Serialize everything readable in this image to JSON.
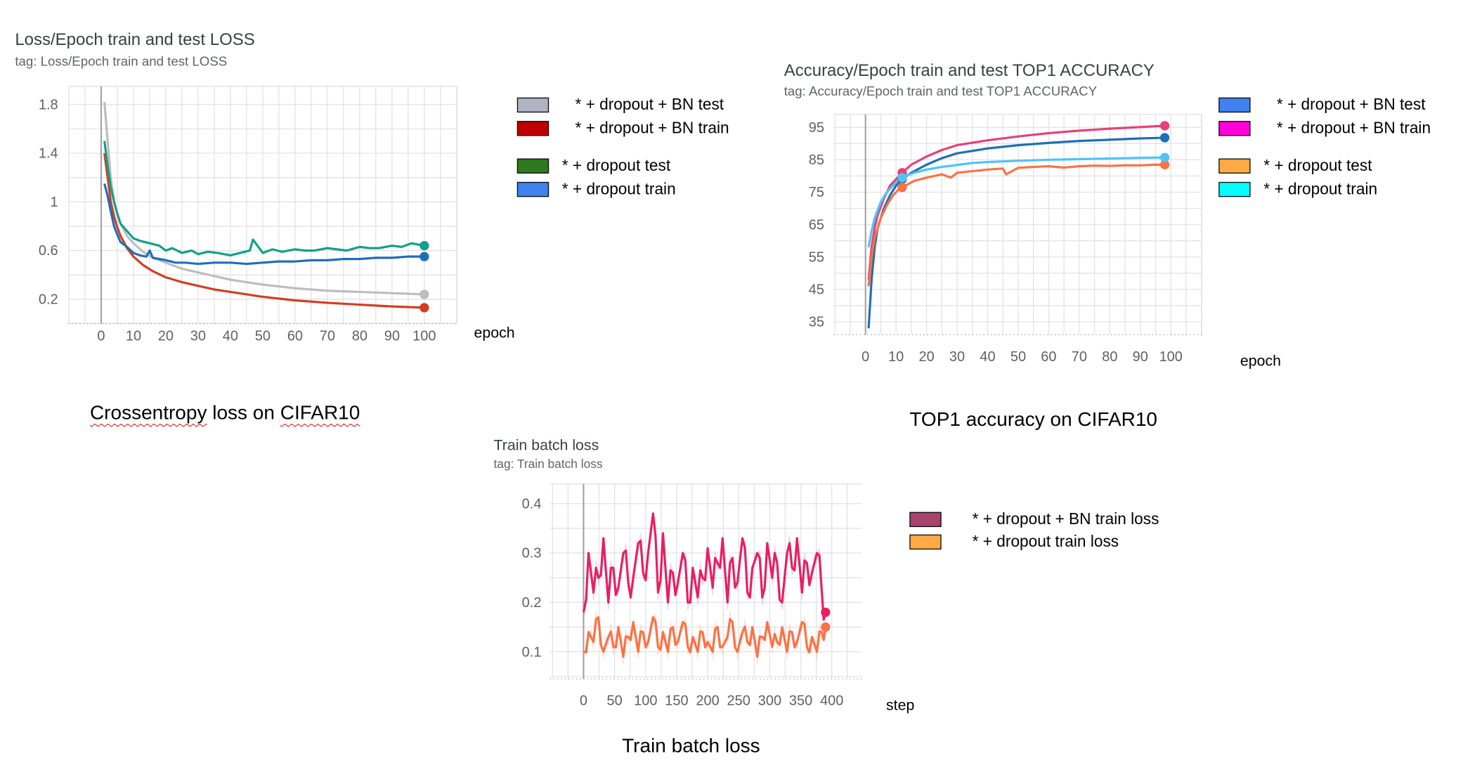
{
  "charts": [
    {
      "title": "Loss/Epoch train and test LOSS",
      "tag": "tag: Loss/Epoch train and test LOSS",
      "xunit": "epoch",
      "caption_parts": [
        "Crossentropy",
        "loss on",
        "CIFAR10"
      ]
    },
    {
      "title": "Accuracy/Epoch train and test TOP1 ACCURACY",
      "tag": "tag: Accuracy/Epoch train and test TOP1 ACCURACY",
      "xunit": "epoch",
      "caption": "TOP1 accuracy on CIFAR10"
    },
    {
      "title": "Train batch loss",
      "tag": "tag: Train batch loss",
      "xunit": "step",
      "caption": "Train batch loss"
    }
  ],
  "legends": [
    [
      {
        "label": "* + dropout + BN test",
        "color": "#aeb4c2"
      },
      {
        "label": "* + dropout + BN train",
        "color": "#c00000"
      },
      {
        "label": "* + dropout test",
        "color": "#2e7a1f"
      },
      {
        "label": "* + dropout train",
        "color": "#3f82f0"
      }
    ],
    [
      {
        "label": "* + dropout + BN test",
        "color": "#3f82f0"
      },
      {
        "label": "* + dropout + BN train",
        "color": "#ff00d8"
      },
      {
        "label": "* + dropout test",
        "color": "#ffaa44"
      },
      {
        "label": "* + dropout train",
        "color": "#00ffff"
      }
    ],
    [
      {
        "label": "* + dropout + BN train loss",
        "color": "#a8436e"
      },
      {
        "label": "* + dropout train loss",
        "color": "#ffaa44"
      }
    ]
  ],
  "chart_data": [
    {
      "type": "line",
      "title": "Loss/Epoch train and test LOSS",
      "xlabel": "epoch",
      "xlim": [
        0,
        100
      ],
      "ylim": [
        0,
        1.95
      ],
      "xticks": [
        0,
        10,
        20,
        30,
        40,
        50,
        60,
        70,
        80,
        90,
        100
      ],
      "yticks": [
        0.2,
        0.6,
        1,
        1.4,
        1.8
      ],
      "ytick_labels": [
        "0.2",
        "0.6",
        "1",
        "1.4",
        "1.8"
      ],
      "series": [
        {
          "name": "* + dropout + BN test",
          "color": "#bdbdbd",
          "x": [
            1,
            2,
            3,
            4,
            5,
            6,
            8,
            10,
            13,
            16,
            20,
            25,
            30,
            35,
            40,
            45,
            50,
            60,
            70,
            80,
            90,
            100
          ],
          "y": [
            1.82,
            1.5,
            1.2,
            1.0,
            0.9,
            0.82,
            0.72,
            0.66,
            0.59,
            0.54,
            0.5,
            0.45,
            0.42,
            0.39,
            0.36,
            0.34,
            0.32,
            0.29,
            0.27,
            0.26,
            0.25,
            0.24
          ]
        },
        {
          "name": "* + dropout + BN train",
          "color": "#d23f1f",
          "x": [
            1,
            2,
            3,
            4,
            5,
            6,
            8,
            10,
            13,
            16,
            20,
            25,
            30,
            35,
            40,
            45,
            50,
            60,
            70,
            80,
            90,
            100
          ],
          "y": [
            1.4,
            1.2,
            1.0,
            0.88,
            0.79,
            0.72,
            0.62,
            0.55,
            0.48,
            0.43,
            0.38,
            0.34,
            0.31,
            0.28,
            0.26,
            0.24,
            0.22,
            0.19,
            0.17,
            0.155,
            0.14,
            0.13
          ]
        },
        {
          "name": "* + dropout test",
          "color": "#12a08a",
          "x": [
            1,
            2,
            3,
            4,
            5,
            6,
            8,
            10,
            12,
            15,
            18,
            20,
            22,
            25,
            28,
            30,
            33,
            36,
            40,
            43,
            46,
            47,
            50,
            53,
            56,
            60,
            63,
            66,
            70,
            73,
            76,
            80,
            83,
            86,
            90,
            93,
            96,
            100
          ],
          "y": [
            1.5,
            1.3,
            1.12,
            1.0,
            0.9,
            0.82,
            0.76,
            0.7,
            0.68,
            0.66,
            0.64,
            0.6,
            0.62,
            0.58,
            0.6,
            0.57,
            0.59,
            0.58,
            0.56,
            0.58,
            0.6,
            0.69,
            0.58,
            0.61,
            0.59,
            0.61,
            0.6,
            0.6,
            0.62,
            0.61,
            0.6,
            0.63,
            0.62,
            0.62,
            0.64,
            0.63,
            0.66,
            0.64
          ]
        },
        {
          "name": "* + dropout train",
          "color": "#1f6fb8",
          "x": [
            1,
            2,
            3,
            4,
            5,
            6,
            8,
            10,
            12,
            14,
            15,
            16,
            18,
            20,
            23,
            26,
            30,
            35,
            40,
            45,
            50,
            55,
            60,
            65,
            70,
            75,
            80,
            85,
            90,
            95,
            100
          ],
          "y": [
            1.15,
            1.05,
            0.92,
            0.8,
            0.73,
            0.67,
            0.63,
            0.58,
            0.56,
            0.55,
            0.6,
            0.54,
            0.53,
            0.52,
            0.5,
            0.5,
            0.49,
            0.5,
            0.5,
            0.49,
            0.5,
            0.51,
            0.51,
            0.52,
            0.52,
            0.53,
            0.53,
            0.54,
            0.54,
            0.55,
            0.55
          ]
        }
      ]
    },
    {
      "type": "line",
      "title": "Accuracy/Epoch train and test TOP1 ACCURACY",
      "xlabel": "epoch",
      "xlim": [
        0,
        100
      ],
      "ylim": [
        31,
        99
      ],
      "xticks": [
        0,
        10,
        20,
        30,
        40,
        50,
        60,
        70,
        80,
        90,
        100
      ],
      "yticks": [
        35,
        45,
        55,
        65,
        75,
        85,
        95
      ],
      "series": [
        {
          "name": "* + dropout + BN test",
          "color": "#1f6fb8",
          "x": [
            1,
            2,
            3,
            4,
            6,
            8,
            10,
            12,
            15,
            20,
            25,
            30,
            40,
            50,
            60,
            70,
            80,
            90,
            98
          ],
          "y": [
            33,
            48,
            58,
            64,
            70,
            74,
            77,
            79,
            81,
            83.5,
            85.5,
            87,
            88.5,
            89.5,
            90.2,
            90.8,
            91.2,
            91.6,
            91.8
          ]
        },
        {
          "name": "* + dropout + BN train",
          "color": "#e6407a",
          "x": [
            1,
            2,
            3,
            4,
            6,
            8,
            10,
            12,
            15,
            20,
            25,
            30,
            40,
            50,
            60,
            70,
            80,
            90,
            98
          ],
          "y": [
            48,
            58,
            64,
            68,
            73,
            77,
            79,
            81,
            83.5,
            86,
            88,
            89.5,
            91,
            92.2,
            93.2,
            94,
            94.6,
            95.1,
            95.5
          ]
        },
        {
          "name": "* + dropout test",
          "color": "#ff7043",
          "x": [
            1,
            2,
            3,
            5,
            7,
            9,
            11,
            13,
            16,
            20,
            25,
            28,
            30,
            35,
            40,
            45,
            46,
            50,
            55,
            60,
            65,
            70,
            75,
            80,
            85,
            90,
            95,
            98
          ],
          "y": [
            46,
            55,
            61,
            67,
            71,
            74,
            76,
            77,
            78.5,
            79.5,
            80.5,
            79.5,
            81,
            81.5,
            82,
            82.3,
            80.5,
            82.5,
            82.8,
            83,
            82.6,
            83,
            83.2,
            83.1,
            83.3,
            83.3,
            83.5,
            83.5
          ]
        },
        {
          "name": "* + dropout train",
          "color": "#4fc3f7",
          "x": [
            1,
            2,
            3,
            5,
            7,
            9,
            11,
            13,
            16,
            20,
            25,
            30,
            35,
            40,
            45,
            50,
            60,
            70,
            80,
            90,
            98
          ],
          "y": [
            58,
            63,
            67,
            72,
            75,
            77,
            79,
            80,
            81,
            82,
            82.8,
            83.4,
            84,
            84.3,
            84.5,
            84.7,
            85,
            85.2,
            85.4,
            85.6,
            85.7
          ]
        }
      ]
    },
    {
      "type": "line",
      "title": "Train batch loss",
      "xlabel": "step",
      "xlim": [
        0,
        400
      ],
      "ylim": [
        0.045,
        0.44
      ],
      "xticks": [
        0,
        50,
        100,
        150,
        200,
        250,
        300,
        350,
        400
      ],
      "yticks": [
        0.1,
        0.2,
        0.3,
        0.4
      ],
      "series": [
        {
          "name": "* + dropout + BN train loss",
          "color": "#e91e63",
          "x": [
            0,
            8,
            16,
            24,
            32,
            40,
            48,
            56,
            64,
            72,
            80,
            88,
            96,
            104,
            112,
            120,
            128,
            136,
            144,
            152,
            160,
            168,
            176,
            184,
            192,
            200,
            208,
            216,
            224,
            232,
            240,
            248,
            256,
            264,
            272,
            280,
            288,
            296,
            304,
            312,
            320,
            328,
            336,
            344,
            352,
            360,
            368,
            376,
            384,
            390
          ],
          "y": [
            0.18,
            0.3,
            0.22,
            0.25,
            0.33,
            0.2,
            0.27,
            0.23,
            0.3,
            0.24,
            0.25,
            0.32,
            0.26,
            0.3,
            0.38,
            0.22,
            0.34,
            0.2,
            0.26,
            0.24,
            0.3,
            0.2,
            0.27,
            0.21,
            0.25,
            0.31,
            0.23,
            0.28,
            0.33,
            0.2,
            0.29,
            0.24,
            0.33,
            0.22,
            0.27,
            0.3,
            0.21,
            0.32,
            0.25,
            0.28,
            0.2,
            0.3,
            0.27,
            0.33,
            0.22,
            0.28,
            0.26,
            0.3,
            0.22,
            0.18
          ]
        },
        {
          "name": "* + dropout train loss",
          "color": "#ff7043",
          "x": [
            0,
            8,
            16,
            24,
            32,
            40,
            48,
            56,
            64,
            72,
            80,
            88,
            96,
            104,
            112,
            120,
            128,
            136,
            144,
            152,
            160,
            168,
            176,
            184,
            192,
            200,
            208,
            216,
            224,
            232,
            240,
            248,
            256,
            264,
            272,
            280,
            288,
            296,
            304,
            312,
            320,
            328,
            336,
            344,
            352,
            360,
            368,
            376,
            384,
            390
          ],
          "y": [
            0.1,
            0.14,
            0.12,
            0.17,
            0.1,
            0.13,
            0.11,
            0.15,
            0.09,
            0.13,
            0.16,
            0.1,
            0.14,
            0.12,
            0.17,
            0.11,
            0.14,
            0.1,
            0.15,
            0.12,
            0.16,
            0.11,
            0.13,
            0.1,
            0.14,
            0.12,
            0.1,
            0.15,
            0.11,
            0.13,
            0.16,
            0.1,
            0.14,
            0.12,
            0.15,
            0.09,
            0.13,
            0.16,
            0.11,
            0.12,
            0.15,
            0.1,
            0.14,
            0.12,
            0.16,
            0.11,
            0.13,
            0.1,
            0.14,
            0.15
          ]
        }
      ]
    }
  ]
}
